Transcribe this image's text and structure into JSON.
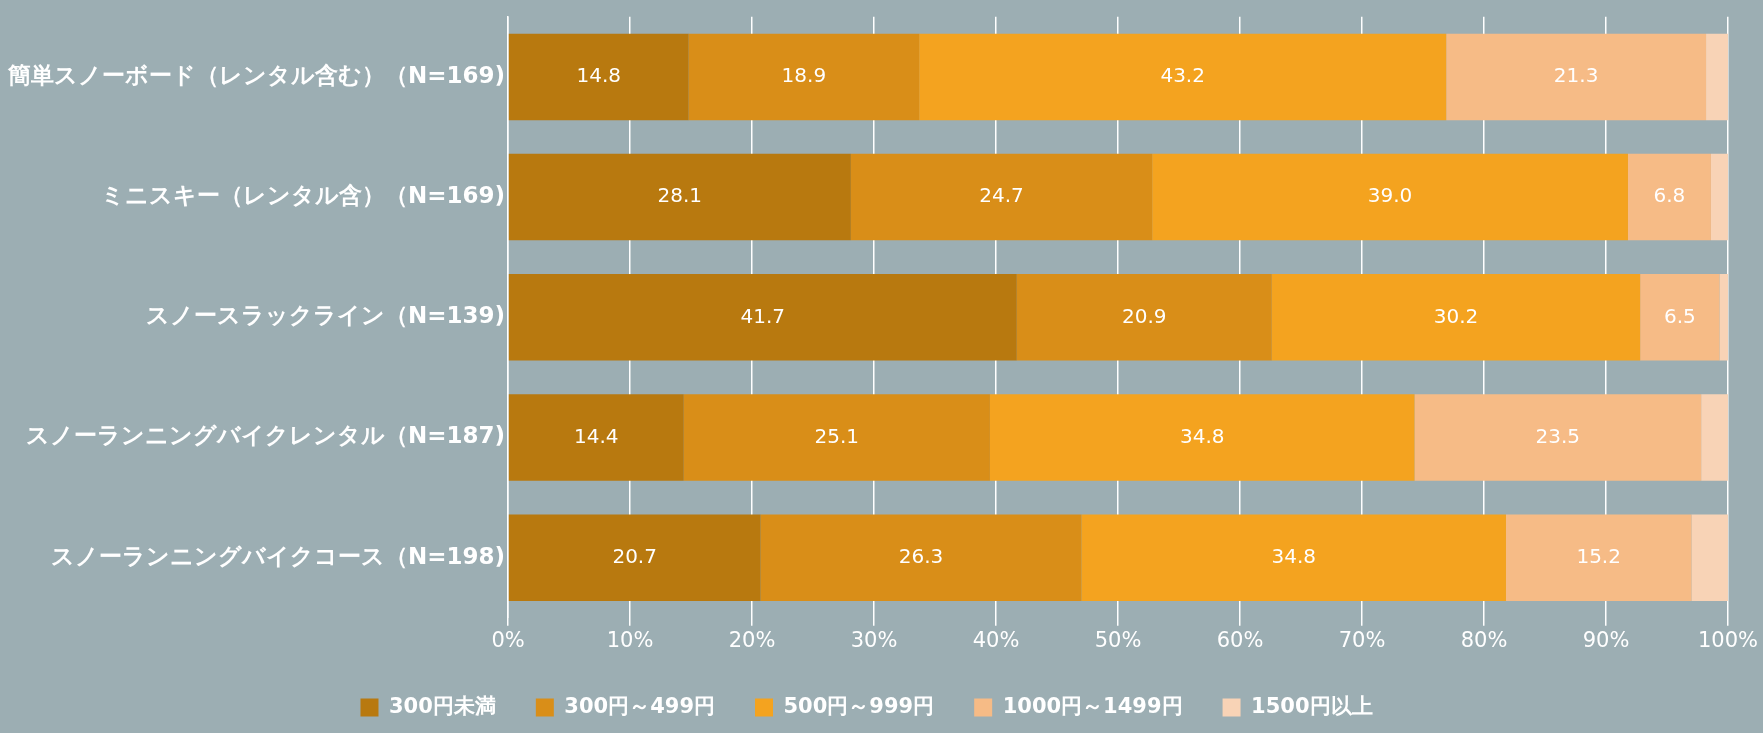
{
  "chart_data": {
    "type": "bar",
    "orientation": "horizontal",
    "stacked": true,
    "categories": [
      "簡単スノーボード（レンタル含む）（N=169)",
      "ミニスキー（レンタル含）（N=169)",
      "スノースラックライン（N=139)",
      "スノーランニングバイクレンタル（N=187)",
      "スノーランニングバイクコース（N=198)"
    ],
    "series": [
      {
        "name": "300円未満",
        "color": "#b8790f",
        "values": [
          14.8,
          28.1,
          41.7,
          14.4,
          20.7
        ],
        "value_labels": [
          "14.8",
          "28.1",
          "41.7",
          "14.4",
          "20.7"
        ]
      },
      {
        "name": "300円～499円",
        "color": "#d98e18",
        "values": [
          18.9,
          24.7,
          20.9,
          25.1,
          26.3
        ],
        "value_labels": [
          "18.9",
          "24.7",
          "20.9",
          "25.1",
          "26.3"
        ]
      },
      {
        "name": "500円～999円",
        "color": "#f4a31f",
        "values": [
          43.2,
          39.0,
          30.2,
          34.8,
          34.8
        ],
        "value_labels": [
          "43.2",
          "39.0",
          "30.2",
          "34.8",
          "34.8"
        ]
      },
      {
        "name": "1000円～1499円",
        "color": "#f6bb86",
        "values": [
          21.3,
          6.8,
          6.5,
          23.5,
          15.2
        ],
        "value_labels": [
          "21.3",
          "6.8",
          "6.5",
          "23.5",
          "15.2"
        ]
      },
      {
        "name": "1500円以上",
        "color": "#f8d3b6",
        "values": [
          1.8,
          1.4,
          0.7,
          2.2,
          3.0
        ]
      }
    ],
    "xlim": [
      0,
      100
    ],
    "xticks": [
      {
        "value": 0,
        "label": "0%"
      },
      {
        "value": 10,
        "label": "10%"
      },
      {
        "value": 20,
        "label": "20%"
      },
      {
        "value": 30,
        "label": "30%"
      },
      {
        "value": 40,
        "label": "40%"
      },
      {
        "value": 50,
        "label": "50%"
      },
      {
        "value": 60,
        "label": "60%"
      },
      {
        "value": 70,
        "label": "70%"
      },
      {
        "value": 80,
        "label": "80%"
      },
      {
        "value": 90,
        "label": "90%"
      },
      {
        "value": 100,
        "label": "100%"
      }
    ],
    "grid": "x",
    "legend": "bottom"
  }
}
